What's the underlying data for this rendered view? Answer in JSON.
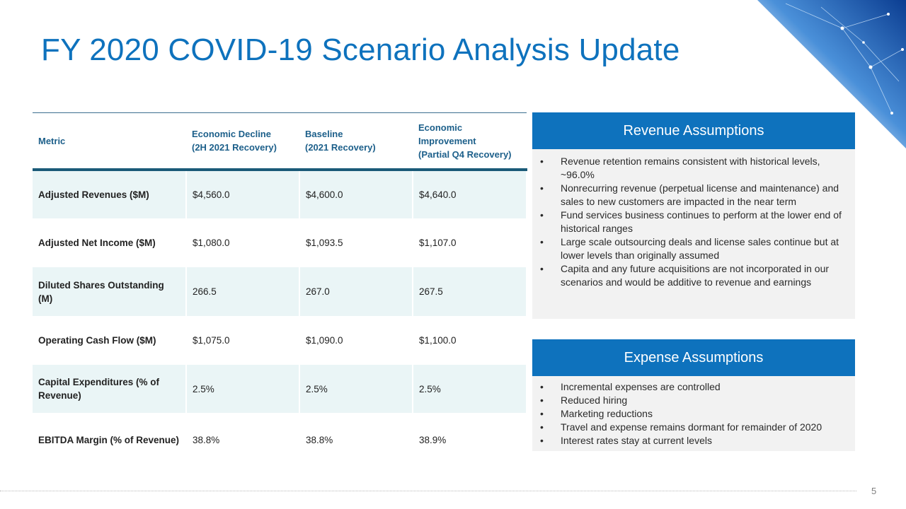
{
  "title": "FY 2020 COVID-19 Scenario Analysis Update",
  "table": {
    "headers": [
      [
        "Metric"
      ],
      [
        "Economic Decline",
        "(2H 2021 Recovery)"
      ],
      [
        "Baseline",
        "(2021 Recovery)"
      ],
      [
        "Economic",
        "Improvement",
        "(Partial Q4 Recovery)"
      ]
    ],
    "rows": [
      {
        "metric": "Adjusted Revenues ($M)",
        "values": [
          "$4,560.0",
          "$4,600.0",
          "$4,640.0"
        ]
      },
      {
        "metric": "Adjusted Net Income ($M)",
        "values": [
          "$1,080.0",
          "$1,093.5",
          "$1,107.0"
        ]
      },
      {
        "metric": "Diluted Shares Outstanding (M)",
        "values": [
          "266.5",
          "267.0",
          "267.5"
        ]
      },
      {
        "metric": "Operating Cash Flow ($M)",
        "values": [
          "$1,075.0",
          "$1,090.0",
          "$1,100.0"
        ]
      },
      {
        "metric": "Capital Expenditures (% of Revenue)",
        "values": [
          "2.5%",
          "2.5%",
          "2.5%"
        ]
      },
      {
        "metric": "EBITDA Margin (% of Revenue)",
        "values": [
          "38.8%",
          "38.8%",
          "38.9%"
        ]
      }
    ]
  },
  "revenue": {
    "title": "Revenue Assumptions",
    "items": [
      "Revenue retention remains consistent with historical levels, ~96.0%",
      "Nonrecurring revenue (perpetual license and maintenance) and sales to new customers are impacted in the near term",
      "Fund services business continues to perform at the lower end of historical ranges",
      "Large scale outsourcing deals and license sales continue but at lower levels than originally assumed",
      "Capita and any future acquisitions are not incorporated in our scenarios and would be additive to revenue and earnings"
    ]
  },
  "expense": {
    "title": "Expense Assumptions",
    "items": [
      "Incremental expenses are controlled",
      "Reduced hiring",
      "Marketing reductions",
      "Travel and expense remains dormant for remainder of 2020",
      "Interest rates stay at current levels"
    ]
  },
  "page_number": "5",
  "colors": {
    "accent": "#0e72bd",
    "shade": "#eaf5f6",
    "panel": "#f2f2f2",
    "header_text": "#1c5f8a"
  }
}
